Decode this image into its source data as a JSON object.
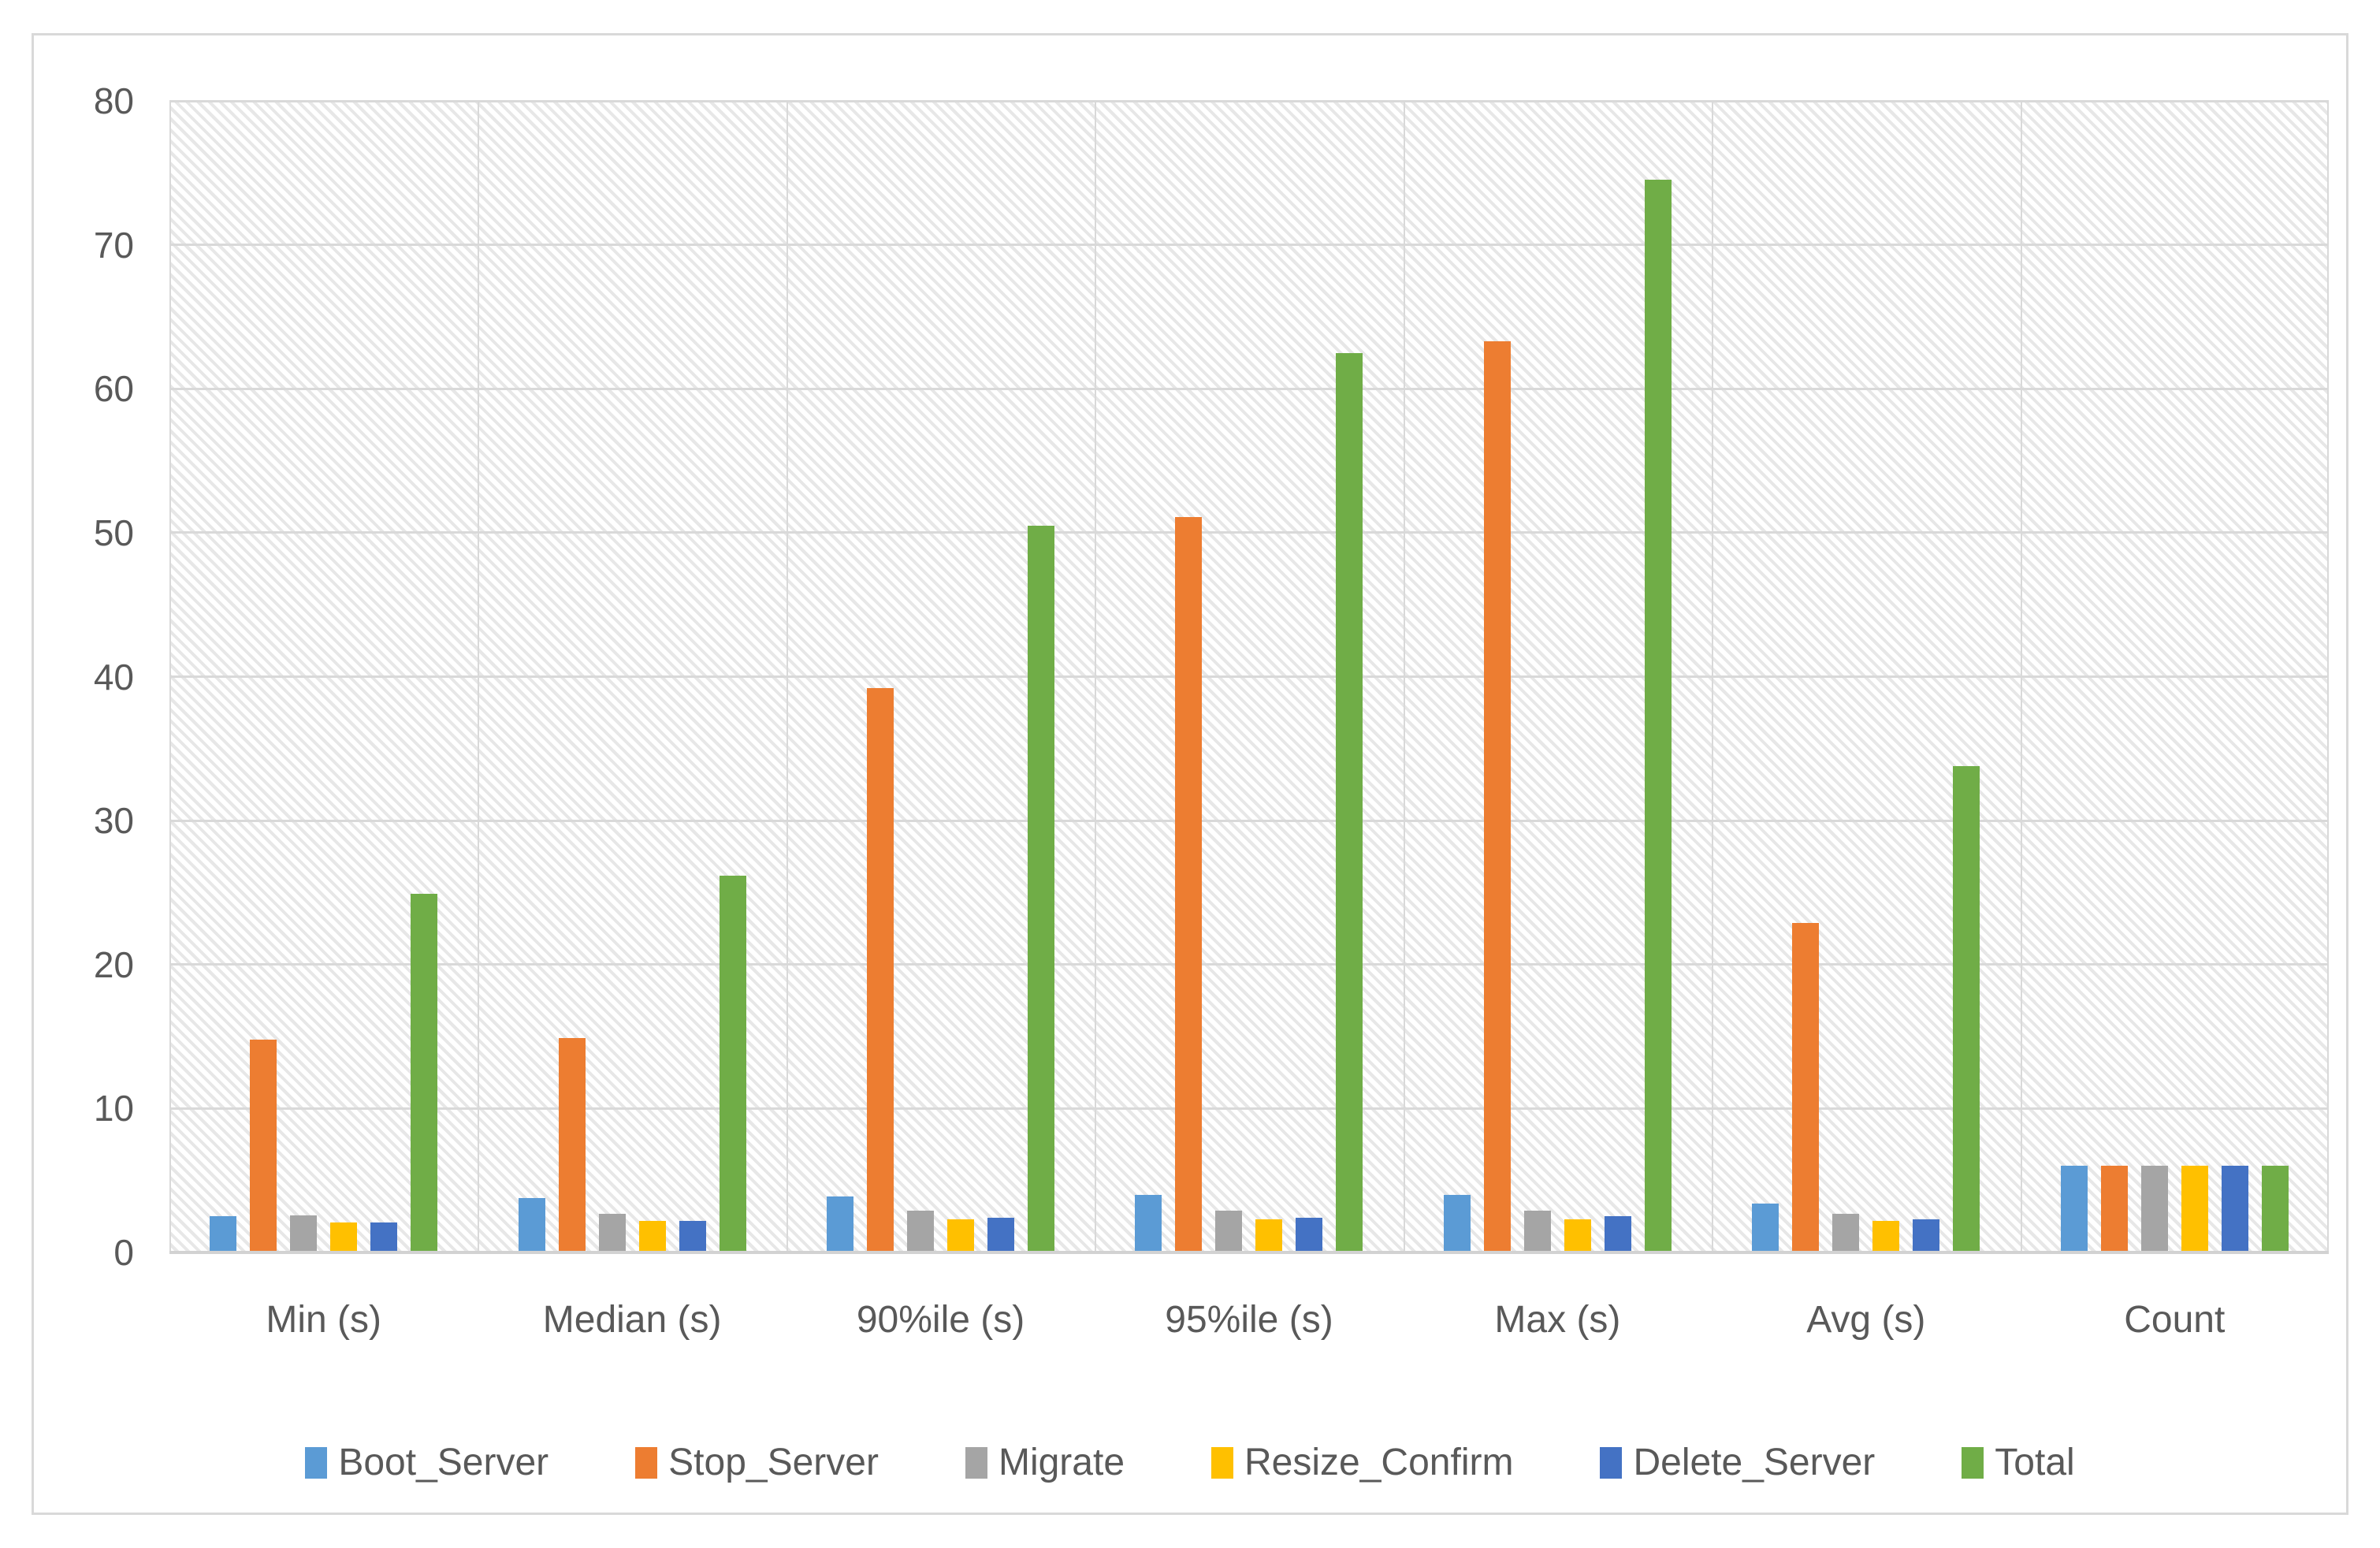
{
  "figure": {
    "background": "#ffffff",
    "border_color": "#d9d9d9",
    "text_color": "#595959",
    "gridline_color": "#d9d9d9",
    "plot_pattern": "light-diagonal-hatch"
  },
  "chart_data": {
    "type": "bar",
    "title": "",
    "xlabel": "",
    "ylabel": "",
    "categories": [
      "Min (s)",
      "Median (s)",
      "90%ile (s)",
      "95%ile (s)",
      "Max (s)",
      "Avg (s)",
      "Count"
    ],
    "series": [
      {
        "name": "Boot_Server",
        "color": "#5B9BD5",
        "values": [
          2.5,
          3.8,
          3.9,
          4.0,
          4.0,
          3.4,
          6
        ]
      },
      {
        "name": "Stop_Server",
        "color": "#ED7D31",
        "values": [
          14.8,
          14.9,
          39.2,
          51.1,
          63.3,
          22.9,
          6
        ]
      },
      {
        "name": "Migrate",
        "color": "#A5A5A5",
        "values": [
          2.6,
          2.7,
          2.9,
          2.9,
          2.9,
          2.7,
          6
        ]
      },
      {
        "name": "Resize_Confirm",
        "color": "#FFC000",
        "values": [
          2.1,
          2.2,
          2.3,
          2.3,
          2.3,
          2.2,
          6
        ]
      },
      {
        "name": "Delete_Server",
        "color": "#4472C4",
        "values": [
          2.1,
          2.2,
          2.4,
          2.4,
          2.5,
          2.3,
          6
        ]
      },
      {
        "name": "Total",
        "color": "#70AD47",
        "values": [
          24.9,
          26.2,
          50.5,
          62.5,
          74.5,
          33.8,
          6
        ]
      }
    ],
    "ylim": [
      0,
      80
    ],
    "yticks": [
      0,
      10,
      20,
      30,
      40,
      50,
      60,
      70,
      80
    ],
    "grid": true,
    "vertical_category_separators": true,
    "legend_position": "bottom"
  }
}
